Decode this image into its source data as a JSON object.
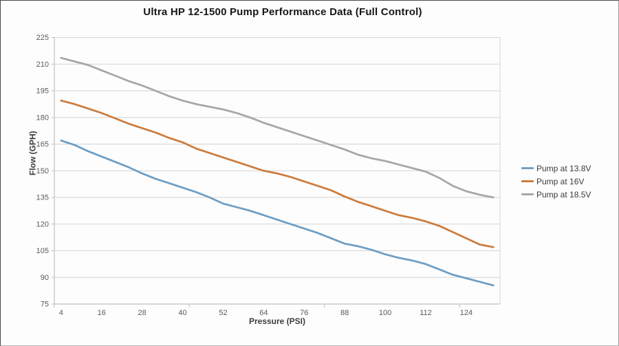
{
  "title": "Ultra HP 12-1500 Pump Performance Data (Full Control)",
  "chart_data": {
    "type": "line",
    "title": "Ultra HP 12-1500 Pump Performance Data (Full Control)",
    "xlabel": "Pressure (PSI)",
    "ylabel": "Flow (GPH)",
    "ylim": [
      75,
      225
    ],
    "yticks": [
      75,
      90,
      105,
      120,
      135,
      150,
      165,
      180,
      195,
      210,
      225
    ],
    "xticks": [
      4,
      16,
      28,
      40,
      52,
      64,
      76,
      88,
      100,
      112,
      124
    ],
    "grid": "horizontal",
    "legend_position": "right",
    "x": [
      4,
      8,
      12,
      16,
      20,
      24,
      28,
      32,
      36,
      40,
      44,
      48,
      52,
      56,
      60,
      64,
      68,
      72,
      76,
      80,
      84,
      88,
      92,
      96,
      100,
      104,
      108,
      112,
      116,
      120,
      124,
      128,
      132
    ],
    "series": [
      {
        "name": "Pump at 13.8V",
        "color": "#6f9ec4",
        "values": [
          167,
          164.5,
          161,
          158,
          155,
          152,
          148.5,
          145.5,
          143,
          140.5,
          138,
          135,
          131.5,
          129.5,
          127.5,
          125,
          122.5,
          120,
          117.5,
          115,
          112,
          109,
          107.5,
          105.5,
          103,
          101,
          99.5,
          97.5,
          94.5,
          91.5,
          89.5,
          87.5,
          85.5
        ]
      },
      {
        "name": "Pump at 16V",
        "color": "#cd7c3e",
        "values": [
          189.5,
          187.5,
          185,
          182.5,
          179.5,
          176.5,
          174,
          171.5,
          168.5,
          166,
          162.5,
          160,
          157.5,
          155,
          152.5,
          150,
          148.5,
          146.5,
          144,
          141.5,
          139,
          135.5,
          132.5,
          130,
          127.5,
          125,
          123.5,
          121.5,
          119,
          115.5,
          112,
          108.5,
          107
        ]
      },
      {
        "name": "Pump at 18.5V",
        "color": "#a7a7a7",
        "values": [
          213.5,
          211.5,
          209.5,
          206.5,
          203.5,
          200.5,
          198,
          195,
          192,
          189.5,
          187.5,
          186,
          184.5,
          182.5,
          180,
          177,
          174.5,
          172,
          169.5,
          167,
          164.5,
          162,
          159,
          157,
          155.5,
          153.5,
          151.5,
          149.5,
          146,
          141.5,
          138.5,
          136.5,
          135
        ]
      }
    ],
    "colors": {
      "gridline": "#d4d4d4",
      "axis_line": "#bfbfbf",
      "tick_text": "#595959",
      "plot_right_border": "#d8d8d8"
    }
  }
}
